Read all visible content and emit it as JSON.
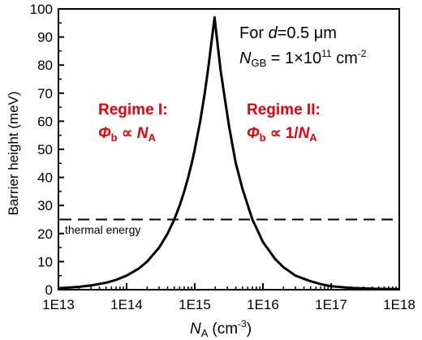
{
  "chart_data": {
    "type": "line",
    "title": "",
    "xlabel_symbol": "N",
    "xlabel_sub": "A",
    "xlabel_unit": "(cm",
    "xlabel_unit_exp": "-3",
    "xlabel_unit_close": ")",
    "ylabel": "Barrier height (meV)",
    "xscale": "log",
    "xlim": [
      10000000000000.0,
      1e+18
    ],
    "ylim": [
      0,
      100
    ],
    "x_ticks": [
      10000000000000.0,
      100000000000000.0,
      1000000000000000.0,
      1e+16,
      1e+17,
      1e+18
    ],
    "x_tick_labels": [
      "1E13",
      "1E14",
      "1E15",
      "1E16",
      "1E17",
      "1E18"
    ],
    "y_ticks": [
      0,
      10,
      20,
      30,
      40,
      50,
      60,
      70,
      80,
      90,
      100
    ],
    "y_tick_labels": [
      "0",
      "10",
      "20",
      "30",
      "40",
      "50",
      "60",
      "70",
      "80",
      "90",
      "100"
    ],
    "grid": false,
    "series": [
      {
        "style": "solid",
        "color": "#000000",
        "x": [
          10000000000000.0,
          20000000000000.0,
          30000000000000.0,
          50000000000000.0,
          70000000000000.0,
          100000000000000.0,
          150000000000000.0,
          200000000000000.0,
          300000000000000.0,
          400000000000000.0,
          500000000000000.0,
          600000000000000.0,
          700000000000000.0,
          800000000000000.0,
          900000000000000.0,
          1000000000000000.0,
          1200000000000000.0,
          1400000000000000.0,
          1600000000000000.0,
          1800000000000000.0,
          1950000000000000.0,
          2100000000000000.0,
          2400000000000000.0,
          2800000000000000.0,
          3200000000000000.0,
          3600000000000000.0,
          4000000000000000.0,
          5000000000000000.0,
          6000000000000000.0,
          7000000000000000.0,
          8000000000000000.0,
          1e+16,
          1.5e+16,
          2e+16,
          3e+16,
          5e+16,
          7e+16,
          1e+17,
          2e+17,
          5e+17,
          1e+18
        ],
        "y": [
          0.5,
          1,
          1.5,
          2.5,
          3.5,
          5,
          7.5,
          10,
          15,
          20,
          25,
          30,
          35,
          40,
          45,
          50,
          60,
          70,
          80,
          90,
          97,
          90,
          78,
          67,
          58,
          51,
          45,
          36,
          30,
          25,
          22,
          17,
          11,
          8,
          5,
          3,
          2,
          1.2,
          0.6,
          0.3,
          0.2
        ]
      }
    ],
    "reference_line": {
      "y": 25,
      "style": "dashed",
      "label": "thermal energy"
    },
    "annotations": {
      "condition_line1_prefix": "For ",
      "condition_line1_var": "d",
      "condition_line1_value": "=0.5 μm",
      "condition_line2_symbol": "N",
      "condition_line2_sub": "GB",
      "condition_line2_value": " = 1×10",
      "condition_line2_exp": "11",
      "condition_line2_unit": " cm",
      "condition_line2_unit_exp": "-2",
      "regime1_title": "Regime I:",
      "regime1_phi": "Φ",
      "regime1_phi_sub": "b",
      "regime1_prop": " ∝ ",
      "regime1_N": "N",
      "regime1_N_sub": "A",
      "regime2_title": "Regime II:",
      "regime2_phi": "Φ",
      "regime2_phi_sub": "b",
      "regime2_prop": " ∝ 1/",
      "regime2_N": "N",
      "regime2_N_sub": "A"
    },
    "colors": {
      "regime_text": "#e8000b",
      "axis": "#000000",
      "curve": "#000000"
    }
  }
}
